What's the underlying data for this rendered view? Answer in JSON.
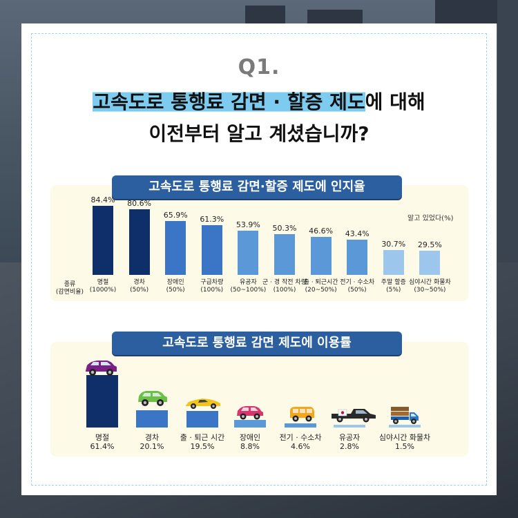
{
  "header": {
    "question_no": "Q1.",
    "title_highlight": "고속도로 통행료 감면 · 할증 제도",
    "title_rest": "에 대해",
    "title_line2": "이전부터 알고 계셨습니까?"
  },
  "chart_data": [
    {
      "type": "bar",
      "title": "고속도로 통행료 감면·할증 제도에 인지율",
      "unit_label": "알고 있었다(%)",
      "row_header": [
        "종류",
        "(감면비율)"
      ],
      "categories": [
        [
          "명절",
          "(1000%)"
        ],
        [
          "경차",
          "(50%)"
        ],
        [
          "장애인",
          "(50%)"
        ],
        [
          "구급차량",
          "(100%)"
        ],
        [
          "유공자",
          "(50~100%)"
        ],
        [
          "군 · 경 작전 차량",
          "(100%)"
        ],
        [
          "출 · 퇴근시간",
          "(20~50%)"
        ],
        [
          "전기 · 수소차",
          "(50%)"
        ],
        [
          "주말 할증",
          "(5%)"
        ],
        [
          "심야시간 화물차",
          "(30~50%)"
        ]
      ],
      "values": [
        84.4,
        80.6,
        65.9,
        61.3,
        53.9,
        50.3,
        46.6,
        43.4,
        30.7,
        29.5
      ],
      "value_labels": [
        "84.4%",
        "80.6%",
        "65.9%",
        "61.3%",
        "53.9%",
        "50.3%",
        "46.6%",
        "43.4%",
        "30.7%",
        "29.5%"
      ],
      "colors": [
        "#0e2f6a",
        "#0e2f6a",
        "#3b76c6",
        "#3b76c6",
        "#5a98d8",
        "#5a98d8",
        "#5a98d8",
        "#5a98d8",
        "#9cc6ec",
        "#9cc6ec"
      ],
      "ylim": [
        0,
        100
      ]
    },
    {
      "type": "bar",
      "title": "고속도로 통행료 감면  제도에 이용률",
      "categories": [
        "명절",
        "경차",
        "출 · 퇴근 시간",
        "장애인",
        "전기 · 수소차",
        "유공자",
        "심야시간 화물차"
      ],
      "values": [
        61.4,
        20.1,
        19.5,
        8.8,
        4.6,
        2.8,
        1.5
      ],
      "value_labels": [
        "61.4%",
        "20.1%",
        "19.5%",
        "8.8%",
        "4.6%",
        "2.8%",
        "1.5%"
      ],
      "colors": [
        "#0e2f6a",
        "#3b76c6",
        "#3b76c6",
        "#5a98d8",
        "#5a98d8",
        "#9cc6ec",
        "#9cc6ec"
      ],
      "icons": [
        "purple-suv-icon",
        "green-compact-car-icon",
        "yellow-sports-car-icon",
        "pink-car-icon",
        "yellow-van-icon",
        "black-pickup-truck-icon",
        "blue-cargo-truck-icon"
      ],
      "ylim": [
        0,
        61.4
      ]
    }
  ]
}
